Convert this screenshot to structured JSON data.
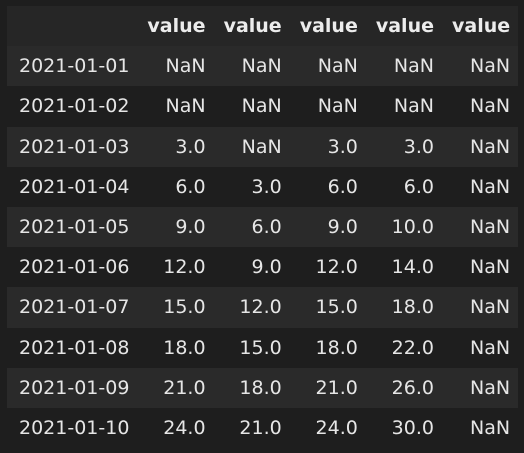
{
  "table": {
    "columns": [
      "",
      "value",
      "value",
      "value",
      "value",
      "value"
    ],
    "rows": [
      {
        "index": "2021-01-01",
        "values": [
          "NaN",
          "NaN",
          "NaN",
          "NaN",
          "NaN"
        ]
      },
      {
        "index": "2021-01-02",
        "values": [
          "NaN",
          "NaN",
          "NaN",
          "NaN",
          "NaN"
        ]
      },
      {
        "index": "2021-01-03",
        "values": [
          "3.0",
          "NaN",
          "3.0",
          "3.0",
          "NaN"
        ]
      },
      {
        "index": "2021-01-04",
        "values": [
          "6.0",
          "3.0",
          "6.0",
          "6.0",
          "NaN"
        ]
      },
      {
        "index": "2021-01-05",
        "values": [
          "9.0",
          "6.0",
          "9.0",
          "10.0",
          "NaN"
        ]
      },
      {
        "index": "2021-01-06",
        "values": [
          "12.0",
          "9.0",
          "12.0",
          "14.0",
          "NaN"
        ]
      },
      {
        "index": "2021-01-07",
        "values": [
          "15.0",
          "12.0",
          "15.0",
          "18.0",
          "NaN"
        ]
      },
      {
        "index": "2021-01-08",
        "values": [
          "18.0",
          "15.0",
          "18.0",
          "22.0",
          "NaN"
        ]
      },
      {
        "index": "2021-01-09",
        "values": [
          "21.0",
          "18.0",
          "21.0",
          "26.0",
          "NaN"
        ]
      },
      {
        "index": "2021-01-10",
        "values": [
          "24.0",
          "21.0",
          "24.0",
          "30.0",
          "NaN"
        ]
      }
    ]
  }
}
